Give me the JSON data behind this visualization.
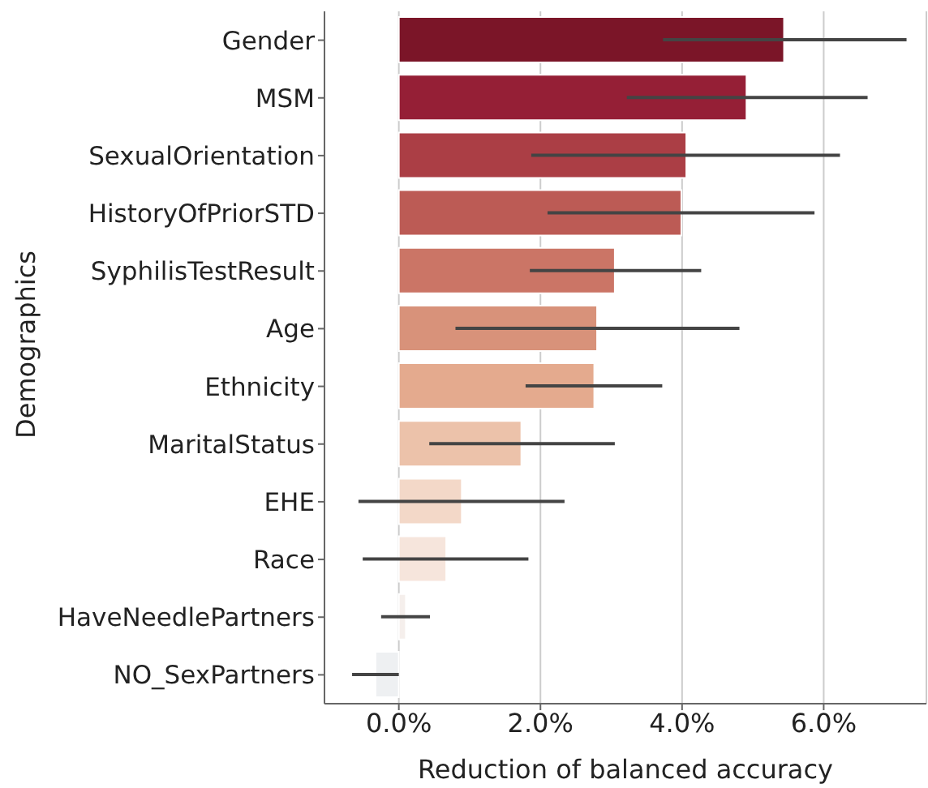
{
  "chart_data": {
    "type": "bar",
    "orientation": "horizontal",
    "xlabel": "Reduction of balanced accuracy",
    "ylabel": "Demographics",
    "categories": [
      "Gender",
      "MSM",
      "SexualOrientation",
      "HistoryOfPriorSTD",
      "SyphilisTestResult",
      "Age",
      "Ethnicity",
      "MaritalStatus",
      "EHE",
      "Race",
      "HaveNeedlePartners",
      "NO_SexPartners"
    ],
    "values": [
      5.44,
      4.91,
      4.06,
      3.99,
      3.05,
      2.8,
      2.76,
      1.73,
      0.89,
      0.67,
      0.1,
      -0.33
    ],
    "errors": [
      [
        3.73,
        7.17
      ],
      [
        3.22,
        6.62
      ],
      [
        1.87,
        6.23
      ],
      [
        2.1,
        5.87
      ],
      [
        1.85,
        4.27
      ],
      [
        0.8,
        4.81
      ],
      [
        1.79,
        3.72
      ],
      [
        0.43,
        3.05
      ],
      [
        -0.57,
        2.34
      ],
      [
        -0.51,
        1.83
      ],
      [
        -0.25,
        0.44
      ],
      [
        -0.66,
        0.0
      ]
    ],
    "colors": [
      "#7b1528",
      "#951f36",
      "#ab3e45",
      "#bc5b55",
      "#cb7566",
      "#d8927a",
      "#e4aa8e",
      "#ecc2aa",
      "#f3d8c8",
      "#f6e5dc",
      "#f5efec",
      "#eef0f2"
    ],
    "xlim": [
      -1.05,
      7.45
    ],
    "xticks": [
      {
        "value": 0,
        "label": "0.0%"
      },
      {
        "value": 2,
        "label": "2.0%"
      },
      {
        "value": 4,
        "label": "4.0%"
      },
      {
        "value": 6,
        "label": "6.0%"
      }
    ],
    "grid": "x"
  }
}
